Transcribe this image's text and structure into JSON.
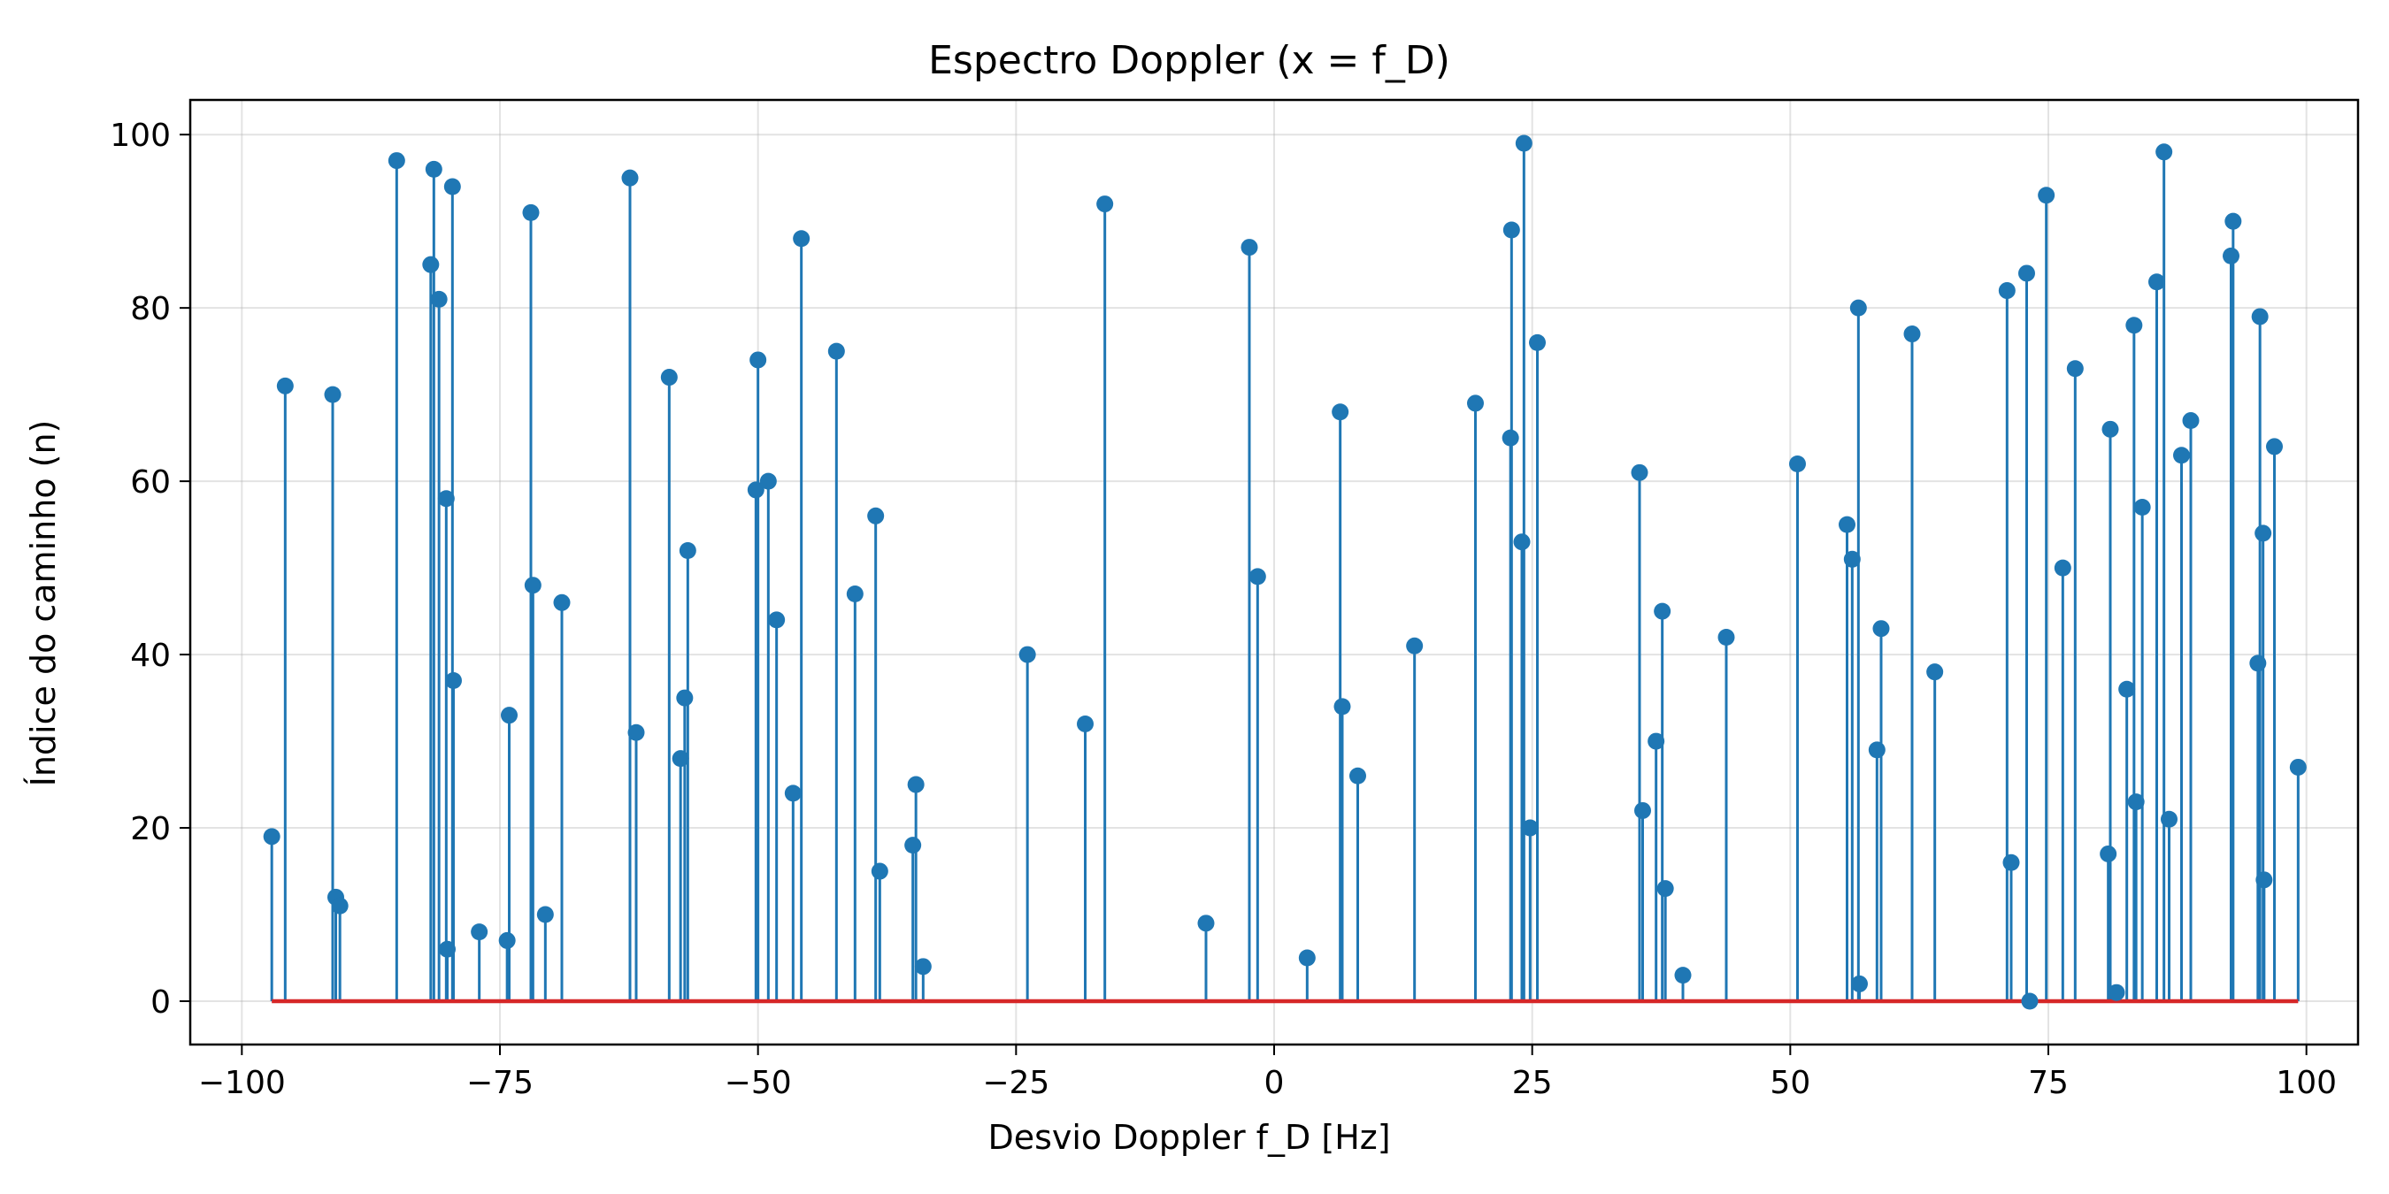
{
  "chart_data": {
    "type": "stem",
    "title": "Espectro Doppler (x = f_D)",
    "xlabel": "Desvio Doppler f_D [Hz]",
    "ylabel": "Índice do caminho (n)",
    "xlim": [
      -105,
      105
    ],
    "ylim": [
      -5,
      104
    ],
    "xticks": [
      -100,
      -75,
      -50,
      -25,
      0,
      25,
      50,
      75,
      100
    ],
    "xtick_labels": [
      "−100",
      "−75",
      "−50",
      "−25",
      "0",
      "25",
      "50",
      "75",
      "100"
    ],
    "yticks": [
      0,
      20,
      40,
      60,
      80,
      100
    ],
    "ytick_labels": [
      "0",
      "20",
      "40",
      "60",
      "80",
      "100"
    ],
    "grid": true,
    "stem_color": "#1f77b4",
    "baseline_color": "#d62728",
    "baseline": {
      "y": 0,
      "x_range": [
        -97.1,
        99.2
      ]
    },
    "points": [
      {
        "x": -97.1,
        "y": 19
      },
      {
        "x": -95.8,
        "y": 71
      },
      {
        "x": -91.2,
        "y": 70
      },
      {
        "x": -90.9,
        "y": 12
      },
      {
        "x": -90.5,
        "y": 11
      },
      {
        "x": -85.0,
        "y": 97
      },
      {
        "x": -81.7,
        "y": 85
      },
      {
        "x": -81.4,
        "y": 96
      },
      {
        "x": -80.9,
        "y": 81
      },
      {
        "x": -80.2,
        "y": 58
      },
      {
        "x": -80.1,
        "y": 6
      },
      {
        "x": -79.6,
        "y": 94
      },
      {
        "x": -79.5,
        "y": 37
      },
      {
        "x": -77.0,
        "y": 8
      },
      {
        "x": -74.3,
        "y": 7
      },
      {
        "x": -74.1,
        "y": 33
      },
      {
        "x": -72.0,
        "y": 91
      },
      {
        "x": -71.8,
        "y": 48
      },
      {
        "x": -70.6,
        "y": 10
      },
      {
        "x": -69.0,
        "y": 46
      },
      {
        "x": -62.4,
        "y": 95
      },
      {
        "x": -61.8,
        "y": 31
      },
      {
        "x": -58.6,
        "y": 72
      },
      {
        "x": -57.5,
        "y": 28
      },
      {
        "x": -57.1,
        "y": 35
      },
      {
        "x": -56.8,
        "y": 52
      },
      {
        "x": -50.2,
        "y": 59
      },
      {
        "x": -50.0,
        "y": 74
      },
      {
        "x": -49.0,
        "y": 60
      },
      {
        "x": -48.2,
        "y": 44
      },
      {
        "x": -46.6,
        "y": 24
      },
      {
        "x": -45.8,
        "y": 88
      },
      {
        "x": -42.4,
        "y": 75
      },
      {
        "x": -40.6,
        "y": 47
      },
      {
        "x": -38.6,
        "y": 56
      },
      {
        "x": -38.2,
        "y": 15
      },
      {
        "x": -35.0,
        "y": 18
      },
      {
        "x": -34.7,
        "y": 25
      },
      {
        "x": -34.0,
        "y": 4
      },
      {
        "x": -23.9,
        "y": 40
      },
      {
        "x": -18.3,
        "y": 32
      },
      {
        "x": -16.4,
        "y": 92
      },
      {
        "x": -6.6,
        "y": 9
      },
      {
        "x": -2.4,
        "y": 87
      },
      {
        "x": -1.6,
        "y": 49
      },
      {
        "x": 3.2,
        "y": 5
      },
      {
        "x": 6.4,
        "y": 68
      },
      {
        "x": 6.6,
        "y": 34
      },
      {
        "x": 8.1,
        "y": 26
      },
      {
        "x": 13.6,
        "y": 41
      },
      {
        "x": 19.5,
        "y": 69
      },
      {
        "x": 22.9,
        "y": 65
      },
      {
        "x": 23.0,
        "y": 89
      },
      {
        "x": 24.0,
        "y": 53
      },
      {
        "x": 24.2,
        "y": 99
      },
      {
        "x": 24.8,
        "y": 20
      },
      {
        "x": 25.5,
        "y": 76
      },
      {
        "x": 35.4,
        "y": 61
      },
      {
        "x": 35.7,
        "y": 22
      },
      {
        "x": 37.0,
        "y": 30
      },
      {
        "x": 37.6,
        "y": 45
      },
      {
        "x": 37.9,
        "y": 13
      },
      {
        "x": 39.6,
        "y": 3
      },
      {
        "x": 43.8,
        "y": 42
      },
      {
        "x": 50.7,
        "y": 62
      },
      {
        "x": 55.5,
        "y": 55
      },
      {
        "x": 56.0,
        "y": 51
      },
      {
        "x": 56.6,
        "y": 80
      },
      {
        "x": 56.7,
        "y": 2
      },
      {
        "x": 58.4,
        "y": 29
      },
      {
        "x": 58.8,
        "y": 43
      },
      {
        "x": 61.8,
        "y": 77
      },
      {
        "x": 64.0,
        "y": 38
      },
      {
        "x": 71.0,
        "y": 82
      },
      {
        "x": 71.4,
        "y": 16
      },
      {
        "x": 72.9,
        "y": 84
      },
      {
        "x": 73.2,
        "y": 0
      },
      {
        "x": 74.8,
        "y": 93
      },
      {
        "x": 76.4,
        "y": 50
      },
      {
        "x": 77.6,
        "y": 73
      },
      {
        "x": 80.8,
        "y": 17
      },
      {
        "x": 81.0,
        "y": 66
      },
      {
        "x": 81.6,
        "y": 1
      },
      {
        "x": 82.6,
        "y": 36
      },
      {
        "x": 83.3,
        "y": 78
      },
      {
        "x": 83.5,
        "y": 23
      },
      {
        "x": 84.1,
        "y": 57
      },
      {
        "x": 85.5,
        "y": 83
      },
      {
        "x": 86.2,
        "y": 98
      },
      {
        "x": 86.7,
        "y": 21
      },
      {
        "x": 87.9,
        "y": 63
      },
      {
        "x": 88.8,
        "y": 67
      },
      {
        "x": 92.7,
        "y": 86
      },
      {
        "x": 92.9,
        "y": 90
      },
      {
        "x": 95.3,
        "y": 39
      },
      {
        "x": 95.5,
        "y": 79
      },
      {
        "x": 95.8,
        "y": 54
      },
      {
        "x": 95.9,
        "y": 14
      },
      {
        "x": 96.9,
        "y": 64
      },
      {
        "x": 99.2,
        "y": 27
      }
    ]
  }
}
